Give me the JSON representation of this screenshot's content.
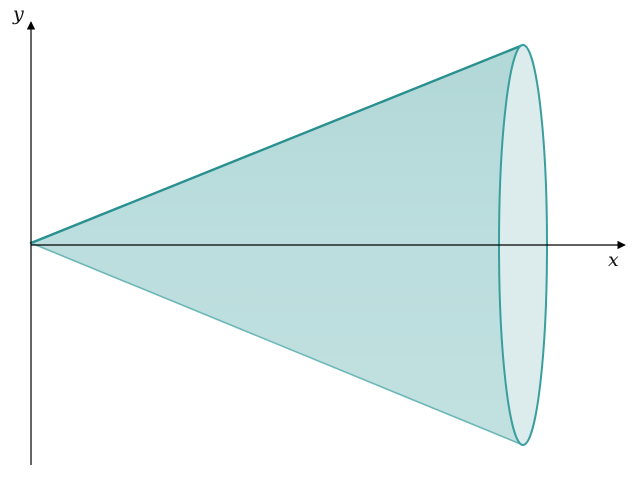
{
  "axes": {
    "x_label": "x",
    "y_label": "y"
  },
  "colors": {
    "background": "#ffffff",
    "axis": "#000000",
    "cone_fill": "#b9dcdc",
    "cone_edge": "#2a9292",
    "base_fill": "#dcecec",
    "base_edge": "#3a9e9e"
  },
  "shape": {
    "type": "cone-of-revolution",
    "axis_of_revolution": "x"
  }
}
